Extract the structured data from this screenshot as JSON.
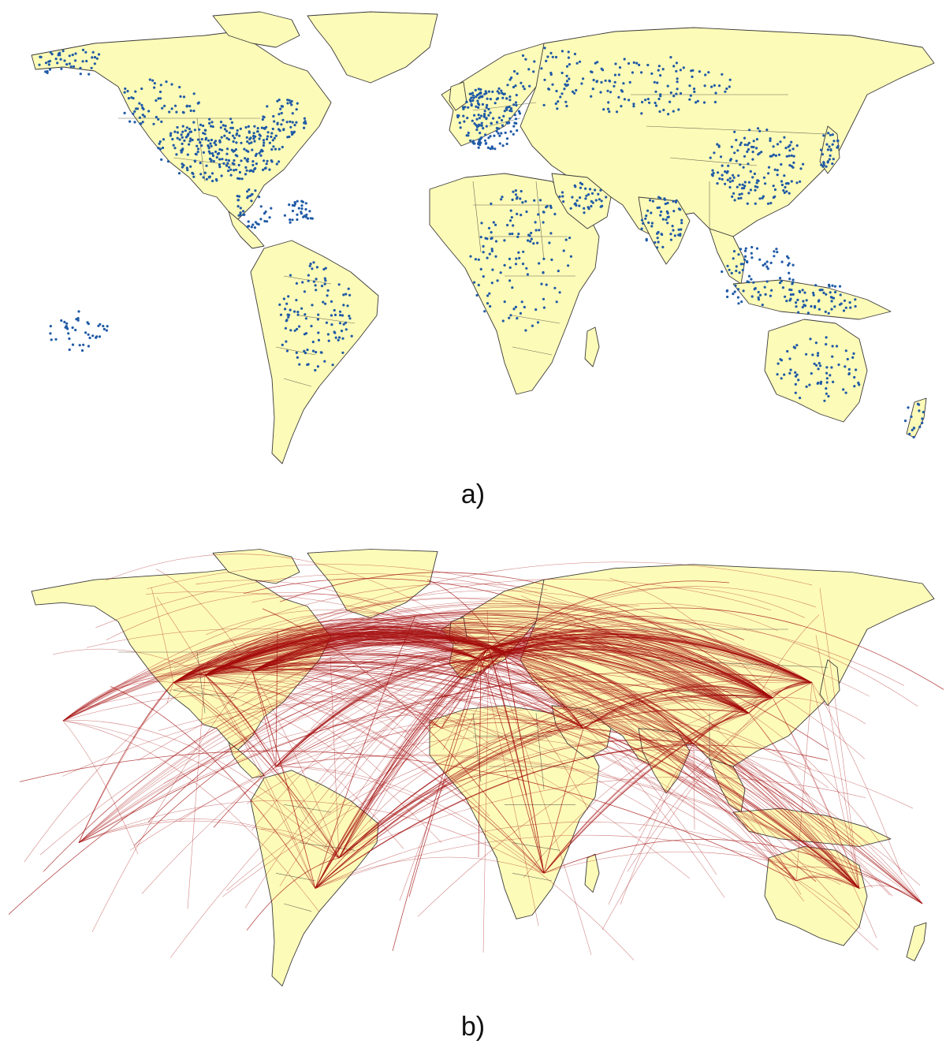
{
  "figure": {
    "panel_a": {
      "caption": "a)",
      "land_color": "#fdfbb8",
      "airport_color": "#1f5aa6"
    },
    "panel_b": {
      "caption": "b)",
      "land_color": "#fdfbb8",
      "route_color": "#a80f0f"
    }
  }
}
